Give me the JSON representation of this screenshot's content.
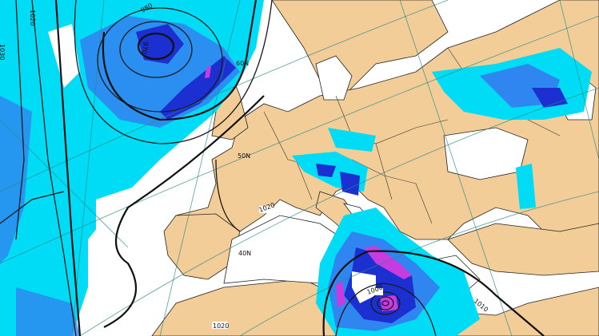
{
  "map": {
    "type": "weather forecast map: mean sea level pressure isobars with precipitation",
    "colors": {
      "land": "#f2cd98",
      "sea": "#ffffff",
      "precip_light": "#00dcf5",
      "precip_moderate": "#2f86f0",
      "precip_heavy": "#1c2fd0",
      "precip_extreme": "#c63ce0",
      "isobar": "#111111",
      "graticule": "#2a8a8a"
    },
    "isobar_labels": [
      "1020",
      "1030",
      "980",
      "970",
      "1000",
      "1010",
      "1020",
      "1020",
      "1010"
    ],
    "graticule_labels": [
      "60N",
      "50N",
      "40N"
    ]
  }
}
